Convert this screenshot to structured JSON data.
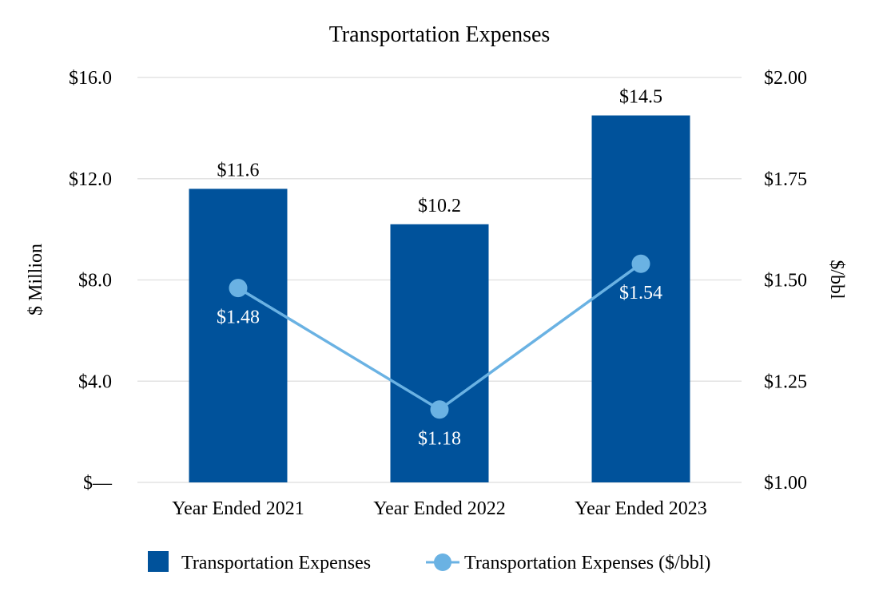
{
  "chart_data": {
    "type": "bar",
    "title": "Transportation Expenses",
    "categories": [
      "Year Ended 2021",
      "Year Ended 2022",
      "Year Ended 2023"
    ],
    "series": [
      {
        "name": "Transportation Expenses",
        "kind": "bar",
        "axis": "left",
        "values": [
          11.6,
          10.2,
          14.5
        ],
        "labels": [
          "$11.6",
          "$10.2",
          "$14.5"
        ],
        "color": "#00529b"
      },
      {
        "name": "Transportation Expenses ($/bbl)",
        "kind": "line",
        "axis": "right",
        "values": [
          1.48,
          1.18,
          1.54
        ],
        "labels": [
          "$1.48",
          "$1.18",
          "$1.54"
        ],
        "color": "#6ab2e3"
      }
    ],
    "ylabel": "$ Million",
    "y2label": "$/bbl",
    "ylim": [
      0,
      16
    ],
    "y2lim": [
      1.0,
      2.0
    ],
    "yticks": [
      0,
      4,
      8,
      12,
      16
    ],
    "ytick_labels": [
      "$—",
      "$4.0",
      "$8.0",
      "$12.0",
      "$16.0"
    ],
    "y2ticks": [
      1.0,
      1.25,
      1.5,
      1.75,
      2.0
    ],
    "y2tick_labels": [
      "$1.00",
      "$1.25",
      "$1.50",
      "$1.75",
      "$2.00"
    ],
    "grid": true,
    "legend": "bottom"
  }
}
